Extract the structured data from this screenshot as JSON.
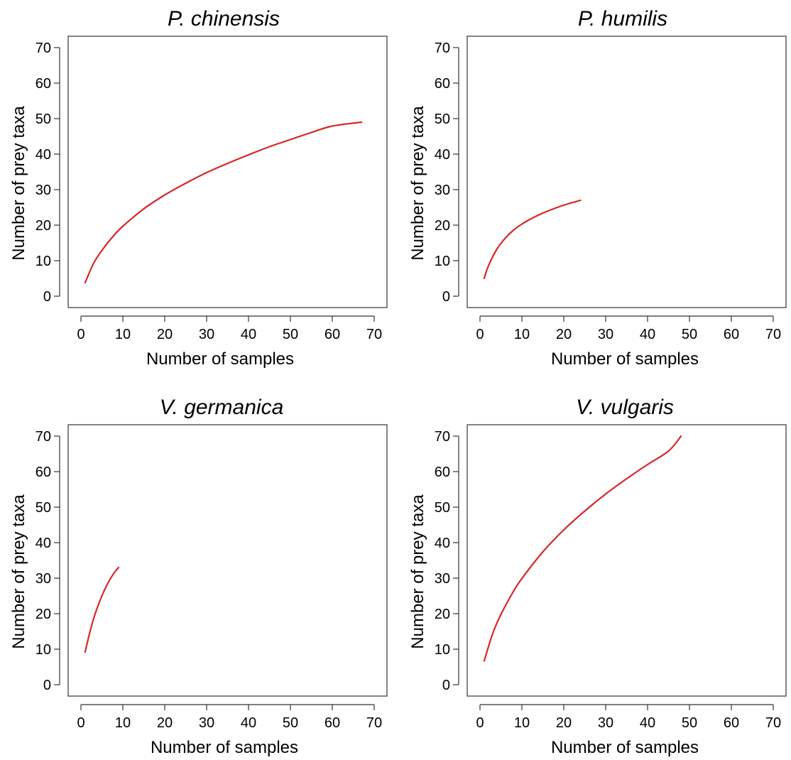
{
  "chart_data": [
    {
      "type": "line",
      "title": "P. chinensis",
      "xlabel": "Number of samples",
      "ylabel": "Number of prey taxa",
      "xlim": [
        0,
        70
      ],
      "ylim": [
        0,
        70
      ],
      "xticks": [
        "0",
        "10",
        "20",
        "30",
        "40",
        "50",
        "60",
        "70"
      ],
      "yticks": [
        "0",
        "10",
        "20",
        "30",
        "40",
        "50",
        "60",
        "70"
      ],
      "grid": false,
      "line_color": "#d62728",
      "series": [
        {
          "x": [
            1,
            3,
            5,
            8,
            10,
            15,
            20,
            25,
            30,
            35,
            40,
            45,
            50,
            55,
            60,
            67
          ],
          "values": [
            3.8,
            9.2,
            12.9,
            17.3,
            19.7,
            24.6,
            28.5,
            31.8,
            34.8,
            37.4,
            39.8,
            42.1,
            44.1,
            46.1,
            47.9,
            49.0
          ]
        }
      ]
    },
    {
      "type": "line",
      "title": "P. humilis",
      "xlabel": "Number of samples",
      "ylabel": "Number of prey taxa",
      "xlim": [
        0,
        70
      ],
      "ylim": [
        0,
        70
      ],
      "xticks": [
        "0",
        "10",
        "20",
        "30",
        "40",
        "50",
        "60",
        "70"
      ],
      "yticks": [
        "0",
        "10",
        "20",
        "30",
        "40",
        "50",
        "60",
        "70"
      ],
      "grid": false,
      "line_color": "#d62728",
      "series": [
        {
          "x": [
            1,
            2,
            4,
            6,
            8,
            10,
            12,
            15,
            18,
            21,
            24
          ],
          "values": [
            5.0,
            8.5,
            13.2,
            16.3,
            18.6,
            20.3,
            21.7,
            23.4,
            24.8,
            26.0,
            27.0
          ]
        }
      ]
    },
    {
      "type": "line",
      "title": "V. germanica",
      "xlabel": "Number of samples",
      "ylabel": "Number of prey taxa",
      "xlim": [
        0,
        70
      ],
      "ylim": [
        0,
        70
      ],
      "xticks": [
        "0",
        "10",
        "20",
        "30",
        "40",
        "50",
        "60",
        "70"
      ],
      "yticks": [
        "0",
        "10",
        "20",
        "30",
        "40",
        "50",
        "60",
        "70"
      ],
      "grid": false,
      "line_color": "#d62728",
      "series": [
        {
          "x": [
            1,
            2,
            3,
            4,
            5,
            6,
            7,
            8,
            9
          ],
          "values": [
            9.2,
            14.2,
            18.5,
            22.0,
            25.0,
            27.6,
            29.8,
            31.6,
            33.0
          ]
        }
      ]
    },
    {
      "type": "line",
      "title": "V. vulgaris",
      "xlabel": "Number of samples",
      "ylabel": "Number of prey taxa",
      "xlim": [
        0,
        70
      ],
      "ylim": [
        0,
        70
      ],
      "xticks": [
        "0",
        "10",
        "20",
        "30",
        "40",
        "50",
        "60",
        "70"
      ],
      "yticks": [
        "0",
        "10",
        "20",
        "30",
        "40",
        "50",
        "60",
        "70"
      ],
      "grid": false,
      "line_color": "#d62728",
      "series": [
        {
          "x": [
            1,
            3,
            5,
            8,
            10,
            15,
            20,
            25,
            30,
            35,
            40,
            45,
            48
          ],
          "values": [
            6.7,
            14.3,
            19.8,
            26.3,
            29.9,
            37.4,
            43.6,
            48.9,
            53.7,
            58.0,
            62.0,
            65.8,
            70.0
          ]
        }
      ]
    }
  ]
}
